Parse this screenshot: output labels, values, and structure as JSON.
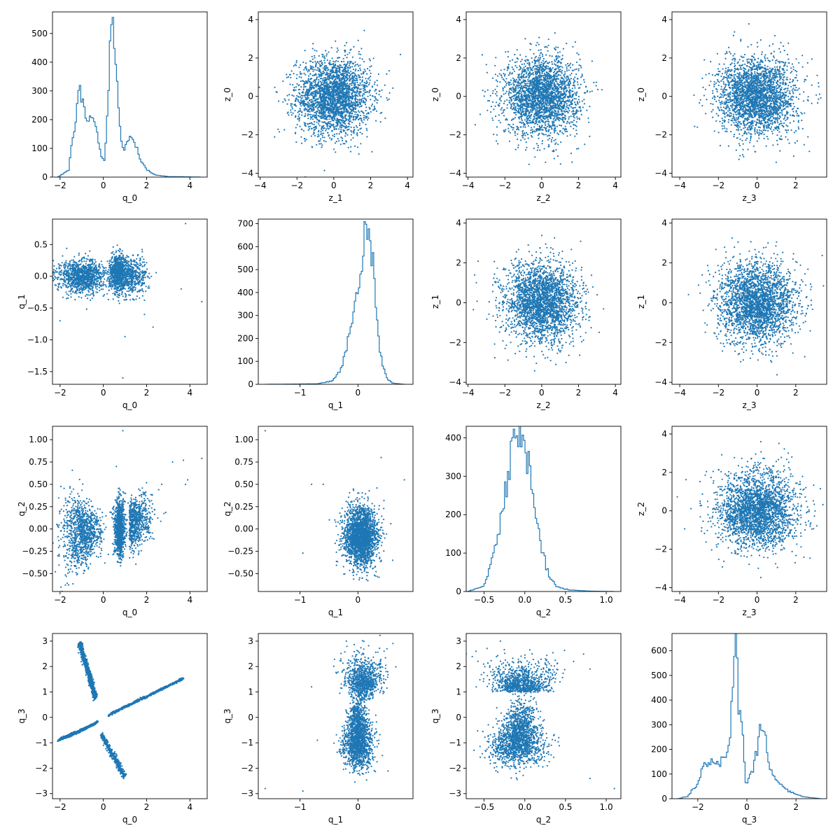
{
  "figure": {
    "color": "#1f77b4",
    "rows": 4,
    "cols": 4
  },
  "chart_data": [
    {
      "row": 0,
      "col": 0,
      "type": "histogram",
      "xlabel": "q_0",
      "ylabel": "",
      "xlim": [
        -2.35,
        4.8
      ],
      "ylim": [
        0,
        575
      ],
      "xticks": [
        -2,
        0,
        2,
        4
      ],
      "yticks": [
        0,
        100,
        200,
        300,
        400,
        500
      ],
      "peaks": [
        [
          -2.1,
          0
        ],
        [
          -1.6,
          25
        ],
        [
          -1.25,
          230
        ],
        [
          -1.1,
          290
        ],
        [
          -0.9,
          240
        ],
        [
          -0.75,
          200
        ],
        [
          -0.45,
          210
        ],
        [
          -0.25,
          140
        ],
        [
          -0.1,
          65
        ],
        [
          0.05,
          60
        ],
        [
          0.15,
          150
        ],
        [
          0.3,
          470
        ],
        [
          0.4,
          550
        ],
        [
          0.55,
          430
        ],
        [
          0.7,
          230
        ],
        [
          0.85,
          110
        ],
        [
          1.05,
          110
        ],
        [
          1.25,
          150
        ],
        [
          1.45,
          120
        ],
        [
          1.7,
          60
        ],
        [
          2.0,
          25
        ],
        [
          2.4,
          8
        ],
        [
          3.0,
          2
        ],
        [
          3.8,
          1
        ],
        [
          4.5,
          0
        ]
      ]
    },
    {
      "row": 0,
      "col": 1,
      "type": "scatter",
      "xlabel": "z_1",
      "ylabel": "z_0",
      "xlim": [
        -4.1,
        4.3
      ],
      "ylim": [
        -4.2,
        4.4
      ],
      "xticks": [
        -4,
        -2,
        0,
        2,
        4
      ],
      "yticks": [
        -4,
        -2,
        0,
        2,
        4
      ],
      "cloud": {
        "kind": "gauss",
        "mx": 0,
        "my": 0,
        "sx": 1,
        "sy": 1,
        "n": 2600
      }
    },
    {
      "row": 0,
      "col": 2,
      "type": "scatter",
      "xlabel": "z_2",
      "ylabel": "z_0",
      "xlim": [
        -4.1,
        4.3
      ],
      "ylim": [
        -4.2,
        4.4
      ],
      "xticks": [
        -4,
        -2,
        0,
        2,
        4
      ],
      "yticks": [
        -4,
        -2,
        0,
        2,
        4
      ],
      "cloud": {
        "kind": "gauss",
        "mx": 0,
        "my": 0,
        "sx": 1,
        "sy": 1,
        "n": 2600
      }
    },
    {
      "row": 0,
      "col": 3,
      "type": "scatter",
      "xlabel": "z_3",
      "ylabel": "z_0",
      "xlim": [
        -4.4,
        3.6
      ],
      "ylim": [
        -4.2,
        4.4
      ],
      "xticks": [
        -4,
        -2,
        0,
        2
      ],
      "yticks": [
        -4,
        -2,
        0,
        2,
        4
      ],
      "cloud": {
        "kind": "gauss",
        "mx": 0,
        "my": 0,
        "sx": 1,
        "sy": 1,
        "n": 2600
      }
    },
    {
      "row": 1,
      "col": 0,
      "type": "scatter",
      "xlabel": "q_0",
      "ylabel": "q_1",
      "xlim": [
        -2.35,
        4.8
      ],
      "ylim": [
        -1.7,
        0.9
      ],
      "xticks": [
        -2,
        0,
        2,
        4
      ],
      "yticks": [
        -1.5,
        -1.0,
        -0.5,
        0.0,
        0.5
      ],
      "cloud": {
        "kind": "bands",
        "n": 2400,
        "bands": [
          [
            -1.0,
            0.55,
            0.0,
            0.13,
            0.45
          ],
          [
            0.65,
            0.2,
            0.05,
            0.14,
            0.35
          ],
          [
            1.3,
            0.35,
            0.0,
            0.15,
            0.2
          ]
        ]
      },
      "outliers": [
        [
          -2.0,
          -0.7
        ],
        [
          -1.7,
          -0.35
        ],
        [
          1.0,
          -0.95
        ],
        [
          0.9,
          -1.6
        ],
        [
          3.8,
          0.83
        ],
        [
          4.55,
          -0.4
        ],
        [
          3.6,
          -0.2
        ],
        [
          2.3,
          -0.8
        ],
        [
          1.9,
          -0.6
        ]
      ]
    },
    {
      "row": 1,
      "col": 1,
      "type": "histogram",
      "xlabel": "q_1",
      "ylabel": "",
      "xlim": [
        -1.72,
        0.95
      ],
      "ylim": [
        0,
        720
      ],
      "xticks": [
        -1,
        0
      ],
      "yticks": [
        0,
        100,
        200,
        300,
        400,
        500,
        600,
        700
      ],
      "peaks": [
        [
          -1.6,
          0
        ],
        [
          -0.7,
          2
        ],
        [
          -0.45,
          15
        ],
        [
          -0.3,
          60
        ],
        [
          -0.2,
          150
        ],
        [
          -0.1,
          280
        ],
        [
          0.0,
          430
        ],
        [
          0.05,
          520
        ],
        [
          0.1,
          600
        ],
        [
          0.14,
          690
        ],
        [
          0.18,
          680
        ],
        [
          0.22,
          600
        ],
        [
          0.28,
          450
        ],
        [
          0.34,
          250
        ],
        [
          0.42,
          90
        ],
        [
          0.5,
          25
        ],
        [
          0.6,
          5
        ],
        [
          0.8,
          0
        ]
      ]
    },
    {
      "row": 1,
      "col": 2,
      "type": "scatter",
      "xlabel": "z_2",
      "ylabel": "z_1",
      "xlim": [
        -4.1,
        4.3
      ],
      "ylim": [
        -4.1,
        4.2
      ],
      "xticks": [
        -4,
        -2,
        0,
        2,
        4
      ],
      "yticks": [
        -4,
        -2,
        0,
        2,
        4
      ],
      "cloud": {
        "kind": "gauss",
        "mx": 0,
        "my": 0,
        "sx": 1,
        "sy": 1,
        "n": 2600
      }
    },
    {
      "row": 1,
      "col": 3,
      "type": "scatter",
      "xlabel": "z_3",
      "ylabel": "z_1",
      "xlim": [
        -4.4,
        3.6
      ],
      "ylim": [
        -4.1,
        4.2
      ],
      "xticks": [
        -4,
        -2,
        0,
        2
      ],
      "yticks": [
        -4,
        -2,
        0,
        2,
        4
      ],
      "cloud": {
        "kind": "gauss",
        "mx": 0,
        "my": 0,
        "sx": 1,
        "sy": 1,
        "n": 2600
      }
    },
    {
      "row": 2,
      "col": 0,
      "type": "scatter",
      "xlabel": "q_0",
      "ylabel": "q_2",
      "xlim": [
        -2.35,
        4.8
      ],
      "ylim": [
        -0.7,
        1.15
      ],
      "xticks": [
        -2,
        0,
        2,
        4
      ],
      "yticks": [
        -0.5,
        -0.25,
        0.0,
        0.25,
        0.5,
        0.75,
        1.0
      ],
      "cloud": {
        "kind": "butterfly",
        "n": 2600
      },
      "outliers": [
        [
          -2.0,
          0.2
        ],
        [
          -2.1,
          -0.3
        ],
        [
          0.6,
          0.7
        ],
        [
          0.9,
          1.1
        ],
        [
          3.2,
          0.75
        ],
        [
          3.7,
          0.77
        ],
        [
          4.55,
          0.79
        ],
        [
          3.8,
          0.5
        ],
        [
          3.9,
          0.55
        ],
        [
          2.7,
          0.5
        ]
      ]
    },
    {
      "row": 2,
      "col": 1,
      "type": "scatter",
      "xlabel": "q_1",
      "ylabel": "q_2",
      "xlim": [
        -1.72,
        0.95
      ],
      "ylim": [
        -0.7,
        1.15
      ],
      "xticks": [
        -1,
        0
      ],
      "yticks": [
        -0.5,
        -0.25,
        0.0,
        0.25,
        0.5,
        0.75,
        1.0
      ],
      "cloud": {
        "kind": "gauss",
        "mx": 0.05,
        "my": -0.08,
        "sx": 0.14,
        "sy": 0.16,
        "n": 2400
      },
      "outliers": [
        [
          -1.6,
          1.1
        ],
        [
          -0.95,
          -0.27
        ],
        [
          -0.8,
          0.5
        ],
        [
          -0.6,
          0.5
        ],
        [
          0.4,
          0.8
        ],
        [
          0.8,
          0.55
        ],
        [
          0.6,
          -0.35
        ],
        [
          -0.4,
          0.1
        ]
      ]
    },
    {
      "row": 2,
      "col": 2,
      "type": "histogram",
      "xlabel": "q_2",
      "ylabel": "",
      "xlim": [
        -0.72,
        1.18
      ],
      "ylim": [
        0,
        430
      ],
      "xticks": [
        -0.5,
        0.0,
        0.5,
        1.0
      ],
      "yticks": [
        0,
        100,
        200,
        300,
        400
      ],
      "peaks": [
        [
          -0.7,
          0
        ],
        [
          -0.5,
          15
        ],
        [
          -0.4,
          80
        ],
        [
          -0.3,
          180
        ],
        [
          -0.2,
          300
        ],
        [
          -0.15,
          380
        ],
        [
          -0.1,
          415
        ],
        [
          -0.05,
          410
        ],
        [
          0.0,
          380
        ],
        [
          0.05,
          330
        ],
        [
          0.1,
          260
        ],
        [
          0.15,
          190
        ],
        [
          0.2,
          120
        ],
        [
          0.3,
          40
        ],
        [
          0.4,
          12
        ],
        [
          0.55,
          4
        ],
        [
          0.8,
          1
        ],
        [
          1.1,
          0
        ]
      ]
    },
    {
      "row": 2,
      "col": 3,
      "type": "scatter",
      "xlabel": "z_3",
      "ylabel": "z_2",
      "xlim": [
        -4.4,
        3.6
      ],
      "ylim": [
        -4.2,
        4.4
      ],
      "xticks": [
        -4,
        -2,
        0,
        2
      ],
      "yticks": [
        -4,
        -2,
        0,
        2,
        4
      ],
      "cloud": {
        "kind": "gauss",
        "mx": 0,
        "my": 0,
        "sx": 1,
        "sy": 1,
        "n": 2600
      }
    },
    {
      "row": 3,
      "col": 0,
      "type": "scatter",
      "xlabel": "q_0",
      "ylabel": "q_3",
      "xlim": [
        -2.35,
        4.8
      ],
      "ylim": [
        -3.2,
        3.3
      ],
      "xticks": [
        -2,
        0,
        2,
        4
      ],
      "yticks": [
        -3,
        -2,
        -1,
        0,
        1,
        2,
        3
      ],
      "cloud": {
        "kind": "arms",
        "n": 2600
      }
    },
    {
      "row": 3,
      "col": 1,
      "type": "scatter",
      "xlabel": "q_1",
      "ylabel": "q_3",
      "xlim": [
        -1.72,
        0.95
      ],
      "ylim": [
        -3.2,
        3.3
      ],
      "xticks": [
        -1,
        0
      ],
      "yticks": [
        -3,
        -2,
        -1,
        0,
        1,
        2,
        3
      ],
      "cloud": {
        "kind": "hourglass",
        "mx": 0.0,
        "n": 2500
      },
      "outliers": [
        [
          -1.6,
          -2.8
        ],
        [
          -0.95,
          -2.9
        ],
        [
          -0.2,
          3.0
        ],
        [
          0.5,
          2.7
        ],
        [
          -0.7,
          -0.9
        ],
        [
          -0.8,
          1.2
        ]
      ]
    },
    {
      "row": 3,
      "col": 2,
      "type": "scatter",
      "xlabel": "q_2",
      "ylabel": "q_3",
      "xlim": [
        -0.72,
        1.18
      ],
      "ylim": [
        -3.2,
        3.3
      ],
      "xticks": [
        -0.5,
        0.0,
        0.5,
        1.0
      ],
      "yticks": [
        -3,
        -2,
        -1,
        0,
        1,
        2,
        3
      ],
      "cloud": {
        "kind": "hourglass2",
        "n": 2500
      },
      "outliers": [
        [
          -0.6,
          2.6
        ],
        [
          -0.3,
          3.0
        ],
        [
          0.8,
          1.9
        ],
        [
          0.8,
          -2.4
        ],
        [
          1.1,
          -2.8
        ],
        [
          0.6,
          2.2
        ]
      ]
    },
    {
      "row": 3,
      "col": 3,
      "type": "histogram",
      "xlabel": "q_3",
      "ylabel": "",
      "xlim": [
        -3.05,
        3.25
      ],
      "ylim": [
        0,
        670
      ],
      "xticks": [
        -2,
        0,
        2
      ],
      "yticks": [
        0,
        100,
        200,
        300,
        400,
        500,
        600
      ],
      "peaks": [
        [
          -2.8,
          0
        ],
        [
          -2.4,
          10
        ],
        [
          -2.0,
          60
        ],
        [
          -1.8,
          130
        ],
        [
          -1.5,
          150
        ],
        [
          -1.3,
          140
        ],
        [
          -1.1,
          170
        ],
        [
          -0.9,
          160
        ],
        [
          -0.7,
          220
        ],
        [
          -0.55,
          480
        ],
        [
          -0.45,
          640
        ],
        [
          -0.35,
          420
        ],
        [
          -0.25,
          370
        ],
        [
          -0.15,
          230
        ],
        [
          -0.05,
          60
        ],
        [
          0.1,
          80
        ],
        [
          0.3,
          150
        ],
        [
          0.5,
          240
        ],
        [
          0.62,
          290
        ],
        [
          0.75,
          250
        ],
        [
          0.9,
          130
        ],
        [
          1.1,
          80
        ],
        [
          1.4,
          60
        ],
        [
          1.8,
          25
        ],
        [
          2.3,
          8
        ],
        [
          3.0,
          0
        ]
      ]
    }
  ]
}
